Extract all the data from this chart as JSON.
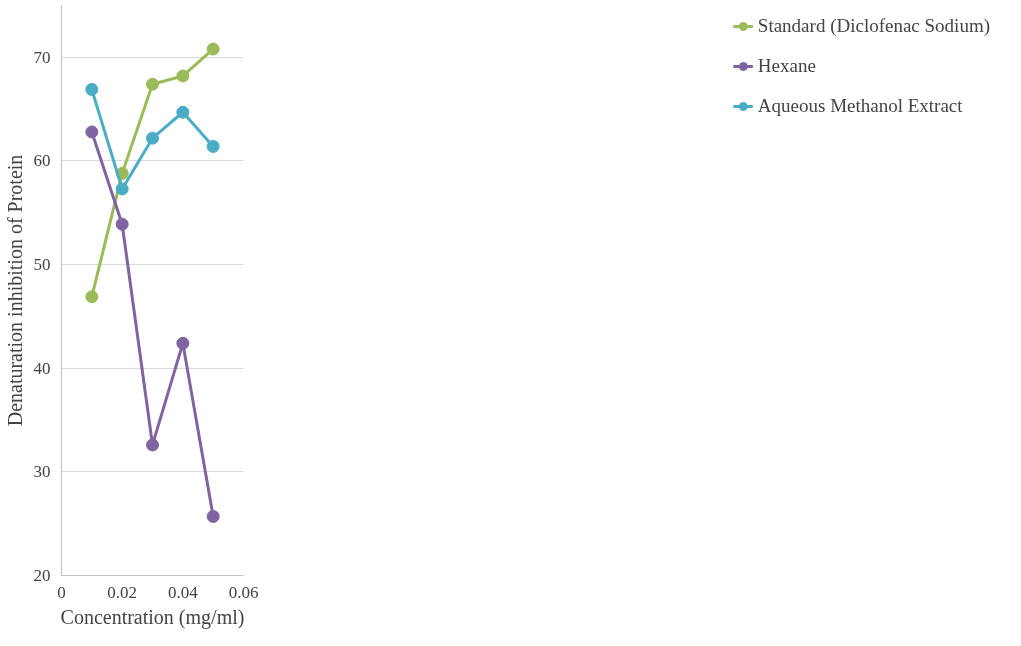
{
  "chart_data": {
    "type": "line",
    "xlabel": "Concentration (mg/ml)",
    "ylabel": "Denaturation inhibition of Protein",
    "x": [
      0.01,
      0.02,
      0.03,
      0.04,
      0.05
    ],
    "series": [
      {
        "name": "Standard (Diclofenac Sodium)",
        "color": "#9bbb59",
        "values": [
          46.9,
          58.8,
          67.4,
          68.2,
          70.8
        ]
      },
      {
        "name": "Hexane",
        "color": "#8064a2",
        "values": [
          62.8,
          53.9,
          32.6,
          42.4,
          25.7
        ]
      },
      {
        "name": "Aqueous Methanol Extract",
        "color": "#4bacc6",
        "values": [
          66.9,
          57.3,
          62.2,
          64.7,
          61.4
        ]
      }
    ],
    "xlim": [
      0,
      0.06
    ],
    "xticks": [
      0,
      0.02,
      0.04,
      0.06
    ],
    "ylim": [
      20,
      75
    ],
    "yticks": [
      20,
      30,
      40,
      50,
      60,
      70
    ],
    "grid": "y",
    "legend": "right",
    "marker": "circle",
    "line_style": "solid"
  }
}
